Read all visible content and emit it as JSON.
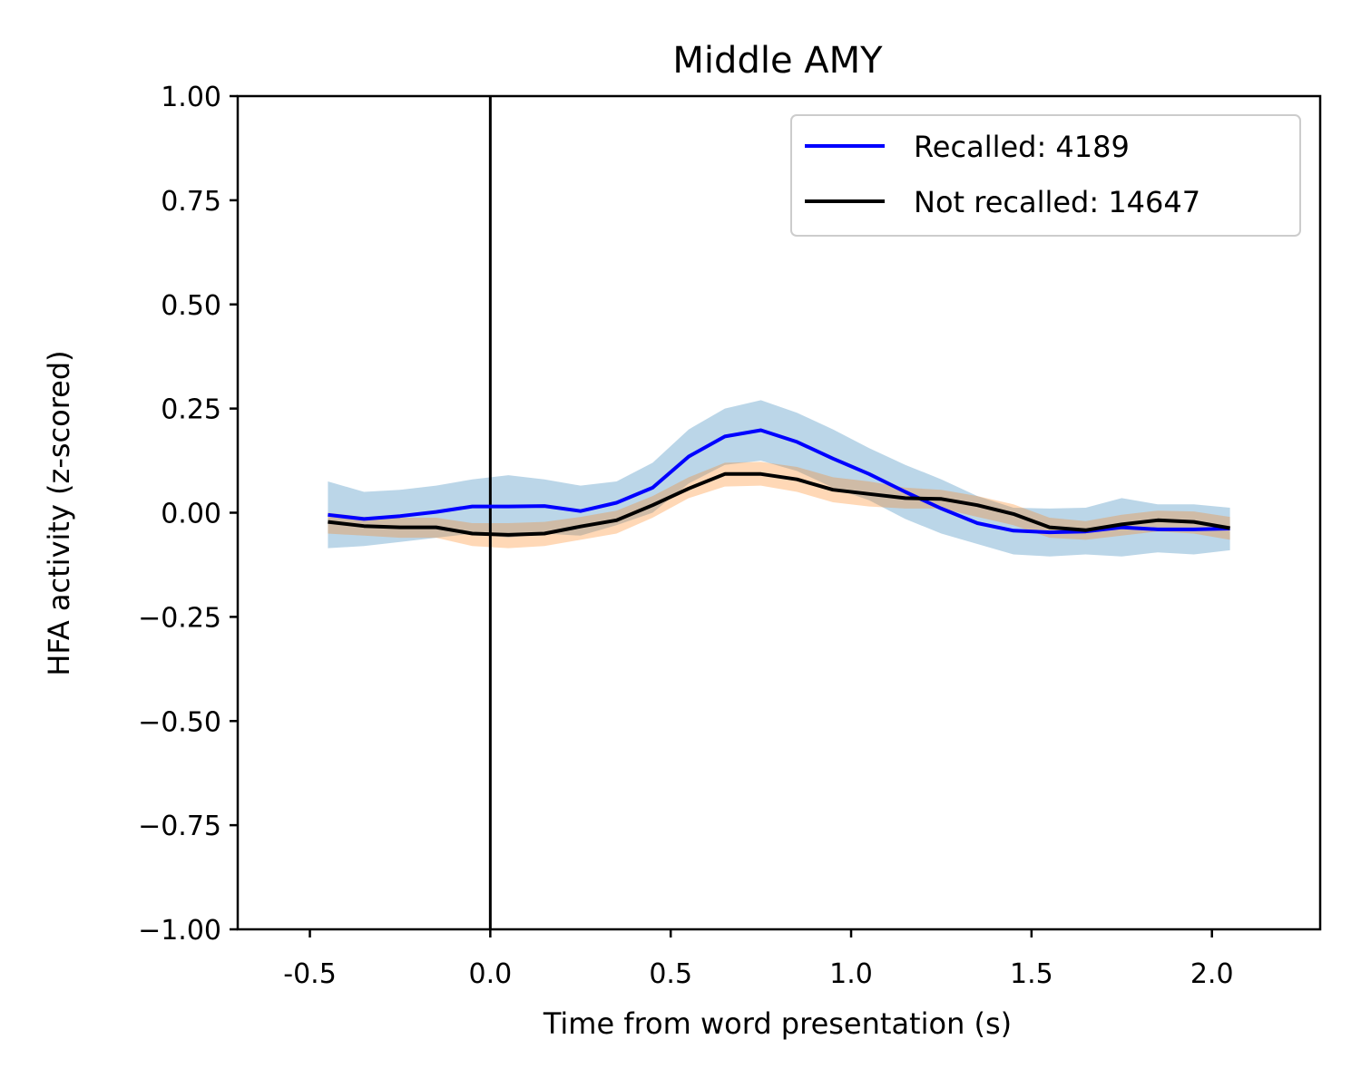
{
  "chart_data": {
    "type": "line",
    "title": "Middle AMY",
    "xlabel": "Time from word presentation (s)",
    "ylabel": "HFA activity (z-scored)",
    "xlim": [
      -0.7,
      2.3
    ],
    "ylim": [
      -1.0,
      1.0
    ],
    "xticks": [
      -0.5,
      0.0,
      0.5,
      1.0,
      1.5,
      2.0
    ],
    "xtick_labels": [
      "-0.5",
      "0.0",
      "0.5",
      "1.0",
      "1.5",
      "2.0"
    ],
    "yticks": [
      1.0,
      0.75,
      0.5,
      0.25,
      0.0,
      -0.25,
      -0.5,
      -0.75,
      -1.0
    ],
    "ytick_labels": [
      "1.00",
      "0.75",
      "0.50",
      "0.25",
      "0.00",
      "−0.25",
      "−0.50",
      "−0.75",
      "−1.00"
    ],
    "vline_x": 0.0,
    "legend_position": "upper-right",
    "grid": false,
    "x": [
      -0.45,
      -0.35,
      -0.25,
      -0.15,
      -0.05,
      0.05,
      0.15,
      0.25,
      0.35,
      0.45,
      0.55,
      0.65,
      0.75,
      0.85,
      0.95,
      1.05,
      1.15,
      1.25,
      1.35,
      1.45,
      1.55,
      1.65,
      1.75,
      1.85,
      1.95,
      2.05
    ],
    "series": [
      {
        "name": "Recalled: 4189",
        "color": "#0000ff",
        "band_color": "#1f77b4",
        "values": [
          -0.005,
          -0.015,
          -0.008,
          0.002,
          0.015,
          0.015,
          0.016,
          0.004,
          0.024,
          0.06,
          0.135,
          0.183,
          0.198,
          0.17,
          0.13,
          0.093,
          0.05,
          0.01,
          -0.025,
          -0.043,
          -0.047,
          -0.045,
          -0.035,
          -0.04,
          -0.04,
          -0.038
        ],
        "upper": [
          0.075,
          0.05,
          0.055,
          0.065,
          0.08,
          0.09,
          0.08,
          0.065,
          0.075,
          0.12,
          0.2,
          0.25,
          0.27,
          0.24,
          0.2,
          0.155,
          0.115,
          0.08,
          0.04,
          0.012,
          0.01,
          0.012,
          0.035,
          0.02,
          0.02,
          0.012
        ],
        "lower": [
          -0.085,
          -0.08,
          -0.07,
          -0.06,
          -0.05,
          -0.06,
          -0.05,
          -0.055,
          -0.03,
          0.0,
          0.07,
          0.115,
          0.125,
          0.1,
          0.06,
          0.03,
          -0.015,
          -0.05,
          -0.075,
          -0.1,
          -0.105,
          -0.1,
          -0.105,
          -0.095,
          -0.1,
          -0.09
        ]
      },
      {
        "name": "Not recalled: 14647",
        "color": "#000000",
        "band_color": "#ff7f0e",
        "values": [
          -0.022,
          -0.032,
          -0.035,
          -0.035,
          -0.05,
          -0.053,
          -0.05,
          -0.033,
          -0.018,
          0.018,
          0.058,
          0.093,
          0.093,
          0.08,
          0.055,
          0.045,
          0.035,
          0.033,
          0.018,
          -0.003,
          -0.035,
          -0.042,
          -0.028,
          -0.018,
          -0.022,
          -0.037
        ],
        "upper": [
          0.0,
          -0.01,
          -0.012,
          -0.012,
          -0.025,
          -0.025,
          -0.022,
          -0.01,
          0.005,
          0.04,
          0.085,
          0.12,
          0.122,
          0.11,
          0.085,
          0.075,
          0.06,
          0.055,
          0.04,
          0.02,
          -0.012,
          -0.02,
          -0.005,
          0.005,
          0.003,
          -0.01
        ],
        "lower": [
          -0.05,
          -0.055,
          -0.06,
          -0.06,
          -0.08,
          -0.085,
          -0.08,
          -0.065,
          -0.05,
          -0.012,
          0.035,
          0.063,
          0.065,
          0.05,
          0.025,
          0.015,
          0.01,
          0.01,
          -0.01,
          -0.03,
          -0.06,
          -0.065,
          -0.055,
          -0.045,
          -0.05,
          -0.065
        ]
      }
    ]
  }
}
